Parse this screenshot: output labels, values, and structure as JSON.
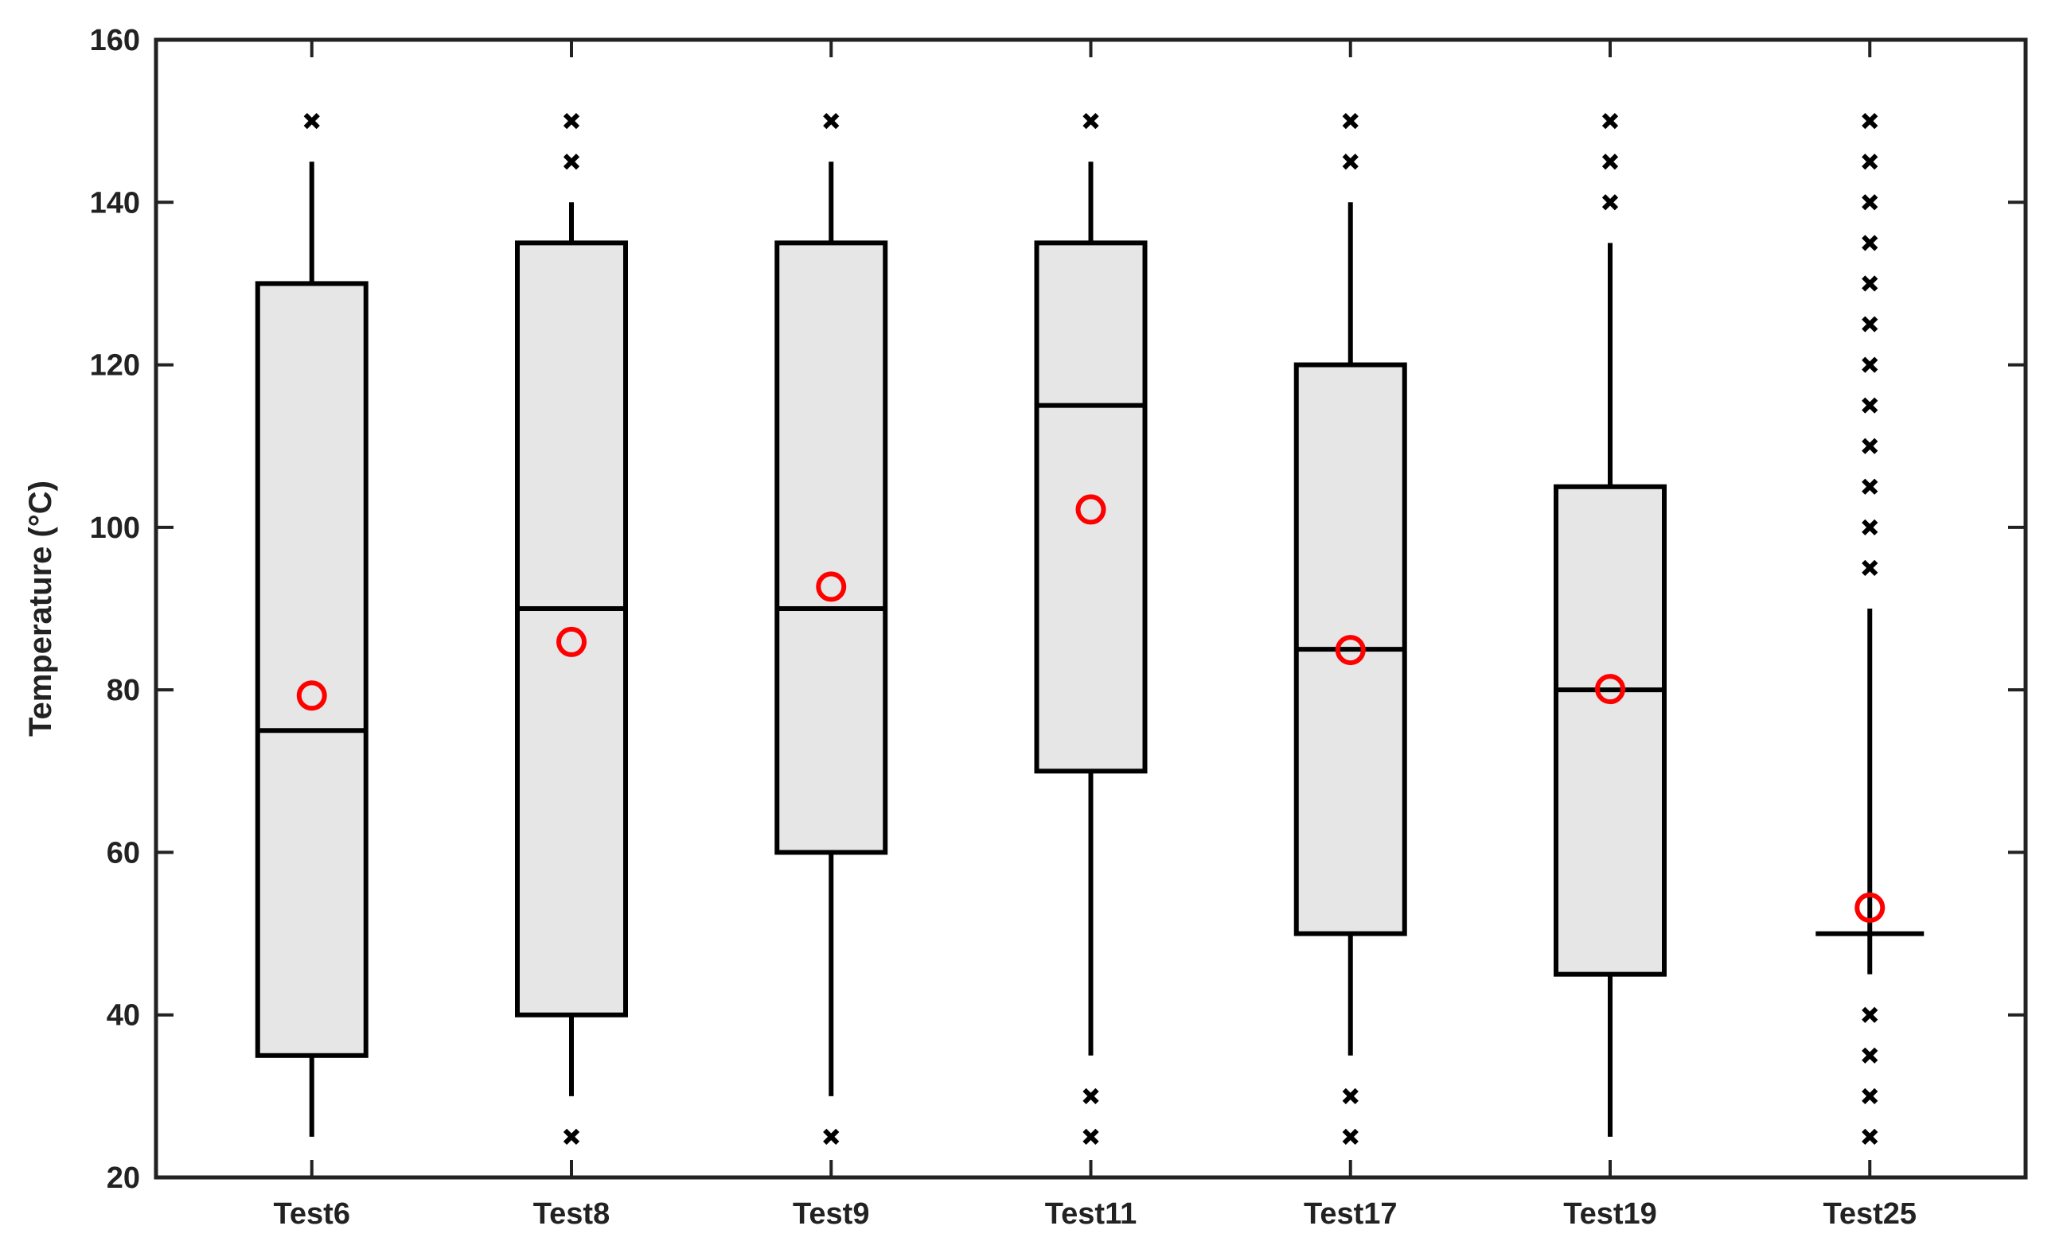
{
  "chart_data": {
    "type": "boxplot",
    "title": "",
    "xlabel": "",
    "ylabel": "Temperature (°C)",
    "ylim": [
      20,
      160
    ],
    "yticks": [
      20,
      40,
      60,
      80,
      100,
      120,
      140,
      160
    ],
    "grid": false,
    "categories": [
      "Test6",
      "Test8",
      "Test9",
      "Test11",
      "Test17",
      "Test19",
      "Test25"
    ],
    "boxes": [
      {
        "category": "Test6",
        "whisker_low": 25,
        "q1": 35,
        "median": 75,
        "q3": 130,
        "whisker_high": 145,
        "mean": 79.3,
        "outliers": [
          150
        ]
      },
      {
        "category": "Test8",
        "whisker_low": 30,
        "q1": 40,
        "median": 90,
        "q3": 135,
        "whisker_high": 140,
        "mean": 85.9,
        "outliers": [
          25,
          145,
          150
        ]
      },
      {
        "category": "Test9",
        "whisker_low": 30,
        "q1": 60,
        "median": 90,
        "q3": 135,
        "whisker_high": 145,
        "mean": 92.7,
        "outliers": [
          25,
          150
        ]
      },
      {
        "category": "Test11",
        "whisker_low": 35,
        "q1": 70,
        "median": 115,
        "q3": 135,
        "whisker_high": 145,
        "mean": 102.2,
        "outliers": [
          25,
          30,
          150
        ]
      },
      {
        "category": "Test17",
        "whisker_low": 35,
        "q1": 50,
        "median": 85,
        "q3": 120,
        "whisker_high": 140,
        "mean": 84.9,
        "outliers": [
          25,
          30,
          145,
          150
        ]
      },
      {
        "category": "Test19",
        "whisker_low": 25,
        "q1": 45,
        "median": 80,
        "q3": 105,
        "whisker_high": 135,
        "mean": 80.1,
        "outliers": [
          140,
          145,
          150
        ]
      },
      {
        "category": "Test25",
        "whisker_low": 45,
        "q1": 50,
        "median": 50,
        "q3": 50,
        "whisker_high": 90,
        "mean": 53.2,
        "outliers": [
          25,
          30,
          35,
          40,
          95,
          100,
          105,
          110,
          115,
          120,
          125,
          130,
          135,
          140,
          145,
          150
        ]
      }
    ],
    "colors": {
      "box_fill": "#e6e6e6",
      "box_stroke": "#000000",
      "mean_marker": "#ff0000",
      "outlier_marker": "#000000",
      "axis": "#222222"
    }
  }
}
